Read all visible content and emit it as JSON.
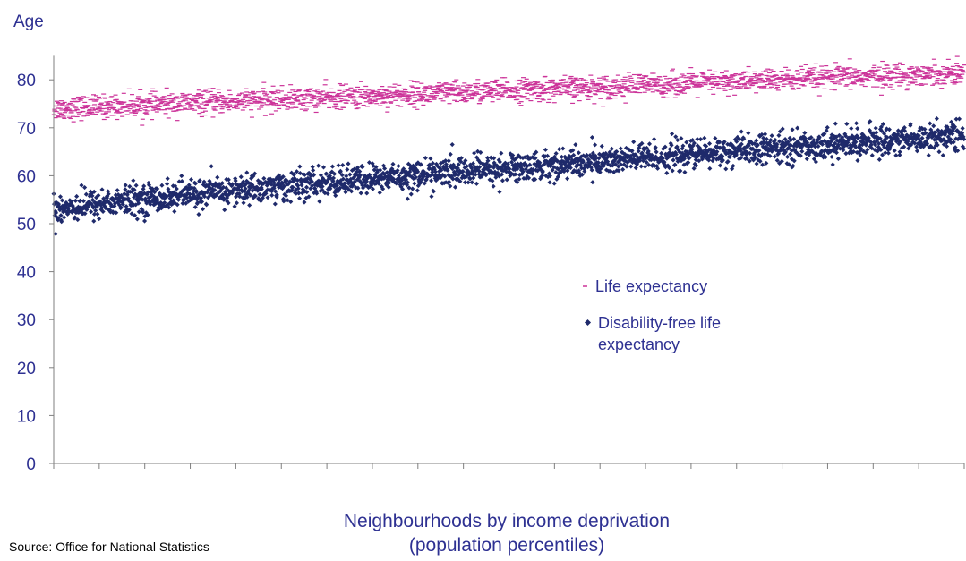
{
  "chart_data": {
    "type": "scatter",
    "ylabel": "Age",
    "xlabel_line1": "Neighbourhoods by income deprivation",
    "xlabel_line2": "(population percentiles)",
    "source": "Source: Office for National Statistics",
    "ylim": [
      0,
      85
    ],
    "xlim": [
      0,
      100
    ],
    "yticks": [
      "0",
      "10",
      "20",
      "30",
      "40",
      "50",
      "60",
      "70",
      "80"
    ],
    "x_tick_count": 21,
    "legend_position": "right-middle",
    "grid": false,
    "series": [
      {
        "name": "Life expectancy",
        "marker": "dash",
        "color": "#cc3399",
        "trend_start": 74,
        "trend_end": 81.5,
        "spread": 2.2
      },
      {
        "name": "Disability-free life expectancy",
        "name_line1": "Disability-free life",
        "name_line2": "expectancy",
        "marker": "diamond",
        "color": "#1f2a6b",
        "trend_start": 53,
        "trend_end": 68.5,
        "spread": 2.8
      }
    ],
    "colors": {
      "axis_text": "#2e3192",
      "axis_line": "#7f7f7f"
    }
  }
}
